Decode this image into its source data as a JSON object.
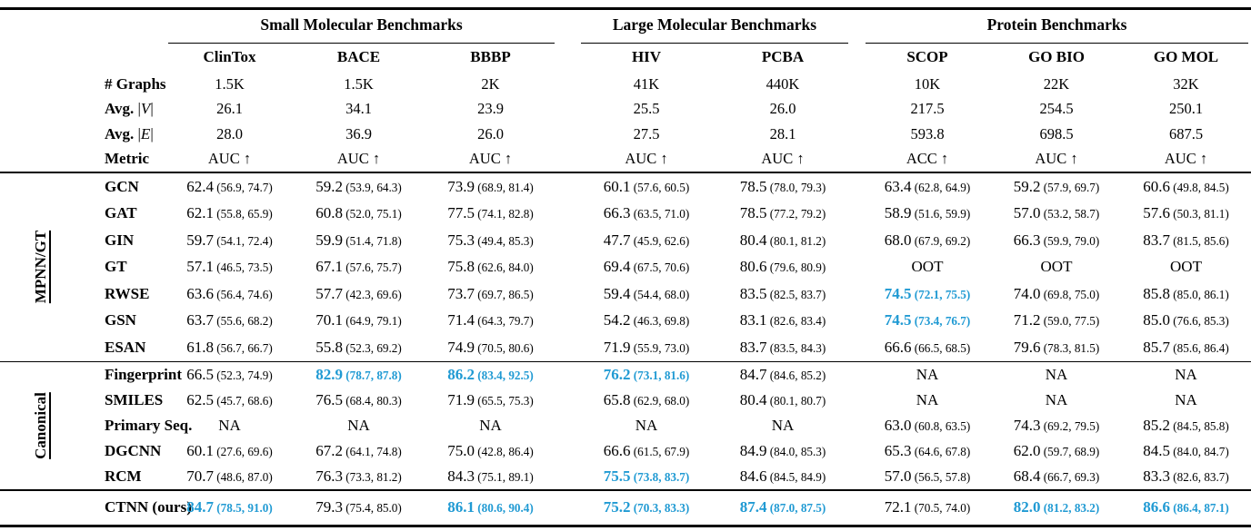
{
  "accent": "#209ad3",
  "table": {
    "groups": [
      {
        "label": "Small Molecular Benchmarks"
      },
      {
        "label": "Large Molecular Benchmarks"
      },
      {
        "label": "Protein Benchmarks"
      }
    ],
    "columns": [
      "ClinTox",
      "BACE",
      "BBBP",
      "HIV",
      "PCBA",
      "SCOP",
      "GO BIO",
      "GO MOL"
    ],
    "meta_rows": [
      {
        "label": "# Graphs",
        "values": [
          "1.5K",
          "1.5K",
          "2K",
          "41K",
          "440K",
          "10K",
          "22K",
          "32K"
        ]
      },
      {
        "label": "Avg.",
        "math": "V",
        "values": [
          "26.1",
          "34.1",
          "23.9",
          "25.5",
          "26.0",
          "217.5",
          "254.5",
          "250.1"
        ]
      },
      {
        "label": "Avg.",
        "math": "E",
        "values": [
          "28.0",
          "36.9",
          "26.0",
          "27.5",
          "28.1",
          "593.8",
          "698.5",
          "687.5"
        ]
      },
      {
        "label": "Metric",
        "values": [
          "AUC ↑",
          "AUC ↑",
          "AUC ↑",
          "AUC ↑",
          "AUC ↑",
          "ACC ↑",
          "AUC ↑",
          "AUC ↑"
        ]
      }
    ],
    "sections": [
      {
        "id": "mpnn-gt",
        "label": "MPNN/GT",
        "rows": [
          {
            "label": "GCN",
            "cells": [
              {
                "v": "62.4",
                "ci": "(56.9, 74.7)"
              },
              {
                "v": "59.2",
                "ci": "(53.9, 64.3)"
              },
              {
                "v": "73.9",
                "ci": "(68.9, 81.4)"
              },
              {
                "v": "60.1",
                "ci": "(57.6, 60.5)"
              },
              {
                "v": "78.5",
                "ci": "(78.0, 79.3)"
              },
              {
                "v": "63.4",
                "ci": "(62.8, 64.9)"
              },
              {
                "v": "59.2",
                "ci": "(57.9, 69.7)"
              },
              {
                "v": "60.6",
                "ci": "(49.8, 84.5)"
              }
            ]
          },
          {
            "label": "GAT",
            "cells": [
              {
                "v": "62.1",
                "ci": "(55.8, 65.9)"
              },
              {
                "v": "60.8",
                "ci": "(52.0, 75.1)"
              },
              {
                "v": "77.5",
                "ci": "(74.1, 82.8)"
              },
              {
                "v": "66.3",
                "ci": "(63.5, 71.0)"
              },
              {
                "v": "78.5",
                "ci": "(77.2, 79.2)"
              },
              {
                "v": "58.9",
                "ci": "(51.6, 59.9)"
              },
              {
                "v": "57.0",
                "ci": "(53.2, 58.7)"
              },
              {
                "v": "57.6",
                "ci": "(50.3, 81.1)"
              }
            ]
          },
          {
            "label": "GIN",
            "cells": [
              {
                "v": "59.7",
                "ci": "(54.1, 72.4)"
              },
              {
                "v": "59.9",
                "ci": "(51.4, 71.8)"
              },
              {
                "v": "75.3",
                "ci": "(49.4, 85.3)"
              },
              {
                "v": "47.7",
                "ci": "(45.9, 62.6)"
              },
              {
                "v": "80.4",
                "ci": "(80.1, 81.2)"
              },
              {
                "v": "68.0",
                "ci": "(67.9, 69.2)"
              },
              {
                "v": "66.3",
                "ci": "(59.9, 79.0)"
              },
              {
                "v": "83.7",
                "ci": "(81.5, 85.6)"
              }
            ]
          },
          {
            "label": "GT",
            "cells": [
              {
                "v": "57.1",
                "ci": "(46.5, 73.5)"
              },
              {
                "v": "67.1",
                "ci": "(57.6, 75.7)"
              },
              {
                "v": "75.8",
                "ci": "(62.6, 84.0)"
              },
              {
                "v": "69.4",
                "ci": "(67.5, 70.6)"
              },
              {
                "v": "80.6",
                "ci": "(79.6, 80.9)"
              },
              {
                "v": "OOT"
              },
              {
                "v": "OOT"
              },
              {
                "v": "OOT"
              }
            ]
          },
          {
            "label": "RWSE",
            "cells": [
              {
                "v": "63.6",
                "ci": "(56.4, 74.6)"
              },
              {
                "v": "57.7",
                "ci": "(42.3, 69.6)"
              },
              {
                "v": "73.7",
                "ci": "(69.7, 86.5)"
              },
              {
                "v": "59.4",
                "ci": "(54.4, 68.0)"
              },
              {
                "v": "83.5",
                "ci": "(82.5, 83.7)"
              },
              {
                "v": "74.5",
                "ci": "(72.1, 75.5)",
                "hl": true
              },
              {
                "v": "74.0",
                "ci": "(69.8, 75.0)"
              },
              {
                "v": "85.8",
                "ci": "(85.0, 86.1)"
              }
            ]
          },
          {
            "label": "GSN",
            "cells": [
              {
                "v": "63.7",
                "ci": "(55.6, 68.2)"
              },
              {
                "v": "70.1",
                "ci": "(64.9, 79.1)"
              },
              {
                "v": "71.4",
                "ci": "(64.3, 79.7)"
              },
              {
                "v": "54.2",
                "ci": "(46.3, 69.8)"
              },
              {
                "v": "83.1",
                "ci": "(82.6, 83.4)"
              },
              {
                "v": "74.5",
                "ci": "(73.4, 76.7)",
                "hl": true
              },
              {
                "v": "71.2",
                "ci": "(59.0, 77.5)"
              },
              {
                "v": "85.0",
                "ci": "(76.6, 85.3)"
              }
            ]
          },
          {
            "label": "ESAN",
            "cells": [
              {
                "v": "61.8",
                "ci": "(56.7, 66.7)"
              },
              {
                "v": "55.8",
                "ci": "(52.3, 69.2)"
              },
              {
                "v": "74.9",
                "ci": "(70.5, 80.6)"
              },
              {
                "v": "71.9",
                "ci": "(55.9, 73.0)"
              },
              {
                "v": "83.7",
                "ci": "(83.5, 84.3)"
              },
              {
                "v": "66.6",
                "ci": "(66.5, 68.5)"
              },
              {
                "v": "79.6",
                "ci": "(78.3, 81.5)"
              },
              {
                "v": "85.7",
                "ci": "(85.6, 86.4)"
              }
            ]
          }
        ]
      },
      {
        "id": "canonical",
        "label": "Canonical",
        "rows": [
          {
            "label": "Fingerprint",
            "cells": [
              {
                "v": "66.5",
                "ci": "(52.3, 74.9)"
              },
              {
                "v": "82.9",
                "ci": "(78.7, 87.8)",
                "hl": true
              },
              {
                "v": "86.2",
                "ci": "(83.4, 92.5)",
                "hl": true
              },
              {
                "v": "76.2",
                "ci": "(73.1, 81.6)",
                "hl": true
              },
              {
                "v": "84.7",
                "ci": "(84.6, 85.2)"
              },
              {
                "v": "NA"
              },
              {
                "v": "NA"
              },
              {
                "v": "NA"
              }
            ]
          },
          {
            "label": "SMILES",
            "cells": [
              {
                "v": "62.5",
                "ci": "(45.7, 68.6)"
              },
              {
                "v": "76.5",
                "ci": "(68.4, 80.3)"
              },
              {
                "v": "71.9",
                "ci": "(65.5, 75.3)"
              },
              {
                "v": "65.8",
                "ci": "(62.9, 68.0)"
              },
              {
                "v": "80.4",
                "ci": "(80.1, 80.7)"
              },
              {
                "v": "NA"
              },
              {
                "v": "NA"
              },
              {
                "v": "NA"
              }
            ]
          },
          {
            "label": "Primary Seq.",
            "cells": [
              {
                "v": "NA"
              },
              {
                "v": "NA"
              },
              {
                "v": "NA"
              },
              {
                "v": "NA"
              },
              {
                "v": "NA"
              },
              {
                "v": "63.0",
                "ci": "(60.8, 63.5)"
              },
              {
                "v": "74.3",
                "ci": "(69.2, 79.5)"
              },
              {
                "v": "85.2",
                "ci": "(84.5, 85.8)"
              }
            ]
          },
          {
            "label": "DGCNN",
            "cells": [
              {
                "v": "60.1",
                "ci": "(27.6, 69.6)"
              },
              {
                "v": "67.2",
                "ci": "(64.1, 74.8)"
              },
              {
                "v": "75.0",
                "ci": "(42.8, 86.4)"
              },
              {
                "v": "66.6",
                "ci": "(61.5, 67.9)"
              },
              {
                "v": "84.9",
                "ci": "(84.0, 85.3)"
              },
              {
                "v": "65.3",
                "ci": "(64.6, 67.8)"
              },
              {
                "v": "62.0",
                "ci": "(59.7, 68.9)"
              },
              {
                "v": "84.5",
                "ci": "(84.0, 84.7)"
              }
            ]
          },
          {
            "label": "RCM",
            "cells": [
              {
                "v": "70.7",
                "ci": "(48.6, 87.0)"
              },
              {
                "v": "76.3",
                "ci": "(73.3, 81.2)"
              },
              {
                "v": "84.3",
                "ci": "(75.1, 89.1)"
              },
              {
                "v": "75.5",
                "ci": "(73.8, 83.7)",
                "hl": true
              },
              {
                "v": "84.6",
                "ci": "(84.5, 84.9)"
              },
              {
                "v": "57.0",
                "ci": "(56.5, 57.8)"
              },
              {
                "v": "68.4",
                "ci": "(66.7, 69.3)"
              },
              {
                "v": "83.3",
                "ci": "(82.6, 83.7)"
              }
            ]
          }
        ]
      },
      {
        "id": "ours",
        "label": "",
        "rows": [
          {
            "label": "CTNN (ours)",
            "cells": [
              {
                "v": "84.7",
                "ci": "(78.5, 91.0)",
                "hl": true
              },
              {
                "v": "79.3",
                "ci": "(75.4, 85.0)"
              },
              {
                "v": "86.1",
                "ci": "(80.6, 90.4)",
                "hl": true
              },
              {
                "v": "75.2",
                "ci": "(70.3, 83.3)",
                "hl": true
              },
              {
                "v": "87.4",
                "ci": "(87.0, 87.5)",
                "hl": true
              },
              {
                "v": "72.1",
                "ci": "(70.5, 74.0)"
              },
              {
                "v": "82.0",
                "ci": "(81.2, 83.2)",
                "hl": true
              },
              {
                "v": "86.6",
                "ci": "(86.4, 87.1)",
                "hl": true
              }
            ]
          }
        ]
      }
    ]
  }
}
